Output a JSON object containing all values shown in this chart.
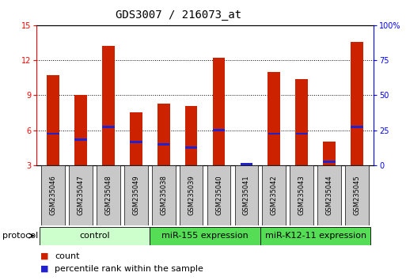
{
  "title": "GDS3007 / 216073_at",
  "samples": [
    "GSM235046",
    "GSM235047",
    "GSM235048",
    "GSM235049",
    "GSM235038",
    "GSM235039",
    "GSM235040",
    "GSM235041",
    "GSM235042",
    "GSM235043",
    "GSM235044",
    "GSM235045"
  ],
  "count_values": [
    10.7,
    9.0,
    13.2,
    7.5,
    8.3,
    8.1,
    12.2,
    3.2,
    11.0,
    10.4,
    5.0,
    13.6
  ],
  "percentile_values": [
    5.7,
    5.2,
    6.3,
    5.0,
    4.8,
    4.5,
    6.0,
    3.1,
    5.7,
    5.7,
    3.3,
    6.3
  ],
  "ylim_left": [
    3,
    15
  ],
  "ylim_right": [
    0,
    100
  ],
  "yticks_left": [
    3,
    6,
    9,
    12,
    15
  ],
  "yticks_right": [
    0,
    25,
    50,
    75,
    100
  ],
  "bar_color": "#cc2200",
  "percentile_color": "#2222cc",
  "bar_width": 0.45,
  "groups": [
    {
      "label": "control",
      "start": 0,
      "end": 4,
      "color": "#ccffcc"
    },
    {
      "label": "miR-155 expression",
      "start": 4,
      "end": 8,
      "color": "#55dd55"
    },
    {
      "label": "miR-K12-11 expression",
      "start": 8,
      "end": 12,
      "color": "#55dd55"
    }
  ],
  "protocol_label": "protocol",
  "legend_count_label": "count",
  "legend_percentile_label": "percentile rank within the sample",
  "grid_color": "black",
  "grid_style": "dotted",
  "grid_values": [
    6,
    9,
    12
  ],
  "bg_color": "#ffffff",
  "sample_box_color": "#c8c8c8",
  "title_fontsize": 10,
  "tick_fontsize": 7,
  "sample_fontsize": 6,
  "group_fontsize": 8,
  "legend_fontsize": 8
}
